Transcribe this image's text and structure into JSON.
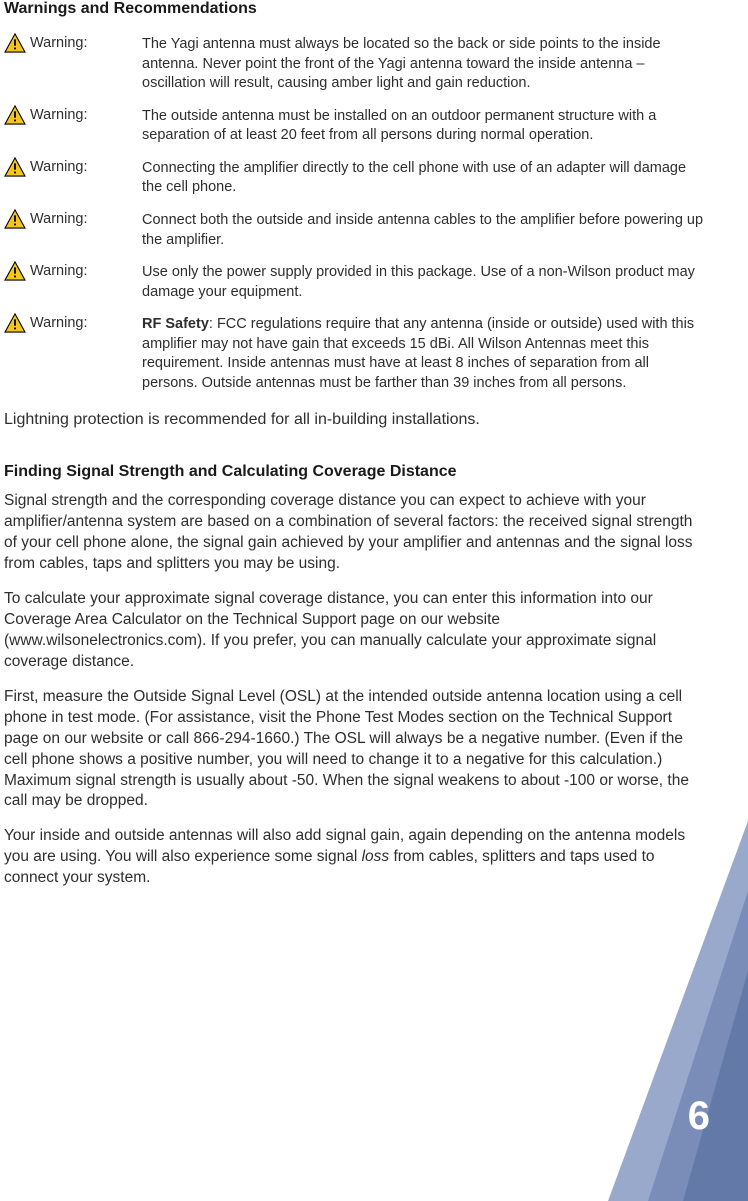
{
  "section1": {
    "title": "Warnings and Recommendations",
    "warnings": [
      {
        "label": "Warning:",
        "text": "The Yagi antenna must always be located so the back or side points to the inside antenna. Never point the front of the Yagi antenna toward the inside antenna – oscillation will result, causing amber light and gain reduction."
      },
      {
        "label": "Warning:",
        "text": "The outside antenna must be installed on an outdoor permanent structure with a separation of at least 20 feet from all persons during normal operation."
      },
      {
        "label": "Warning:",
        "text": "Connecting the amplifier directly to the cell phone with use of an adapter will damage the cell phone."
      },
      {
        "label": "Warning:",
        "text": "Connect both the outside and inside antenna cables to the amplifier before powering up the amplifier."
      },
      {
        "label": "Warning:",
        "text": "Use only the power supply provided in this package. Use of a non-Wilson product may damage your equipment."
      },
      {
        "label": "Warning:",
        "bold_lead": "RF Safety",
        "text": ":  FCC regulations require that any antenna (inside or outside) used with this amplifier may not have gain that exceeds 15 dBi. All Wilson Antennas meet this requirement. Inside antennas must have at least 8 inches of separation from all persons. Outside antennas must be farther than 39 inches from all persons."
      }
    ],
    "lightning_note": "Lightning protection is recommended for all in-building installations."
  },
  "section2": {
    "title": "Finding Signal Strength and Calculating Coverage Distance",
    "paragraphs": [
      "Signal strength and the corresponding coverage distance you can expect to achieve with your amplifier/antenna system are based on a combination of several factors: the received signal strength of your cell phone alone, the signal gain achieved by your amplifier and antennas and the signal loss from cables, taps and splitters you may be using.",
      "To calculate your approximate signal coverage distance, you can enter this information into our Coverage Area Calculator on the Technical Support page on our website (www.wilsonelectronics.com). If you prefer, you can manually calculate your approximate signal coverage distance.",
      "First, measure the Outside Signal Level (OSL) at the intended outside antenna location using a cell phone in test mode. (For assistance, visit the Phone Test Modes section on the Technical Support page on our website or call 866-294-1660.) The OSL will always be a negative number. (Even if the cell phone shows a positive number, you will need to change it to a negative for this calculation.) Maximum signal strength is usually about -50. When the signal weakens to about -100 or worse, the call may be dropped."
    ],
    "final_para_parts": {
      "pre": "Your inside and outside antennas will also add signal gain, again depending on the antenna models you are using. You will also experience some signal ",
      "italic": "loss",
      "post": " from cables, splitters and taps used to connect your system."
    }
  },
  "page_number": "6",
  "colors": {
    "icon_yellow": "#f5c518",
    "icon_stroke": "#000000",
    "footer_tri1": "#99a9cc",
    "footer_tri2": "#7a8db8",
    "footer_tri3": "#6379a8"
  }
}
